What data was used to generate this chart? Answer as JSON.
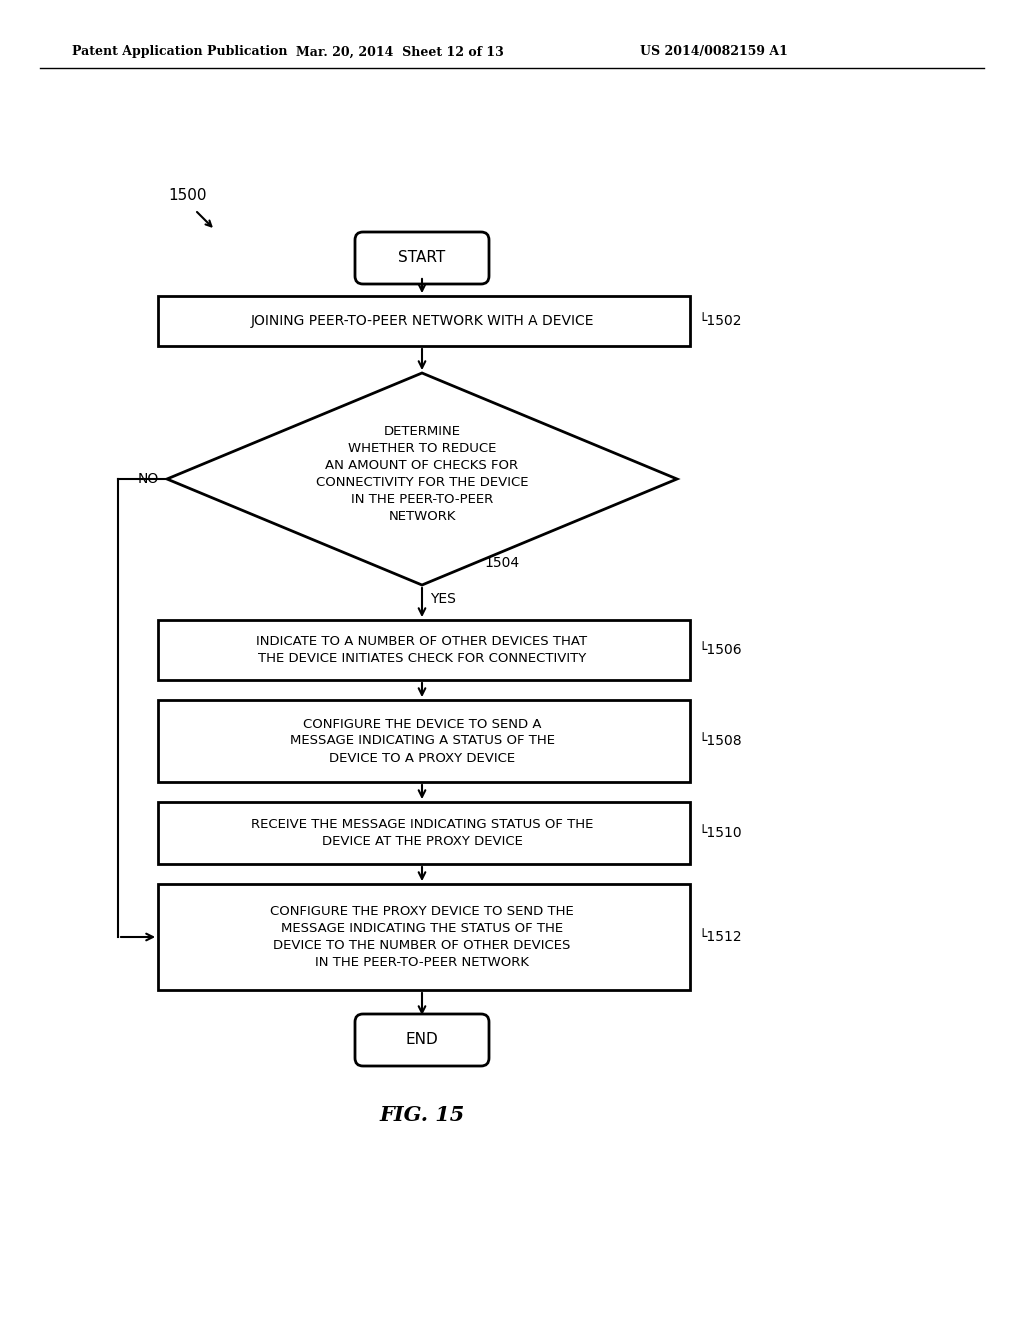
{
  "header_left": "Patent Application Publication",
  "header_mid": "Mar. 20, 2014  Sheet 12 of 13",
  "header_right": "US 2014/0082159 A1",
  "fig_label": "FIG. 15",
  "label_1500": "1500",
  "start_text": "START",
  "boxes": [
    {
      "label": "JOINING PEER-TO-PEER NETWORK WITH A DEVICE",
      "tag": "1502"
    },
    {
      "label": "INDICATE TO A NUMBER OF OTHER DEVICES THAT\nTHE DEVICE INITIATES CHECK FOR CONNECTIVITY",
      "tag": "1506"
    },
    {
      "label": "CONFIGURE THE DEVICE TO SEND A\nMESSAGE INDICATING A STATUS OF THE\nDEVICE TO A PROXY DEVICE",
      "tag": "1508"
    },
    {
      "label": "RECEIVE THE MESSAGE INDICATING STATUS OF THE\nDEVICE AT THE PROXY DEVICE",
      "tag": "1510"
    },
    {
      "label": "CONFIGURE THE PROXY DEVICE TO SEND THE\nMESSAGE INDICATING THE STATUS OF THE\nDEVICE TO THE NUMBER OF OTHER DEVICES\nIN THE PEER-TO-PEER NETWORK",
      "tag": "1512"
    }
  ],
  "diamond_text": "DETERMINE\nWHETHER TO REDUCE\nAN AMOUNT OF CHECKS FOR\nCONNECTIVITY FOR THE DEVICE\nIN THE PEER-TO-PEER\nNETWORK",
  "diamond_tag": "1504",
  "end_text": "END",
  "no_label": "NO",
  "yes_label": "YES",
  "bg_color": "#ffffff"
}
